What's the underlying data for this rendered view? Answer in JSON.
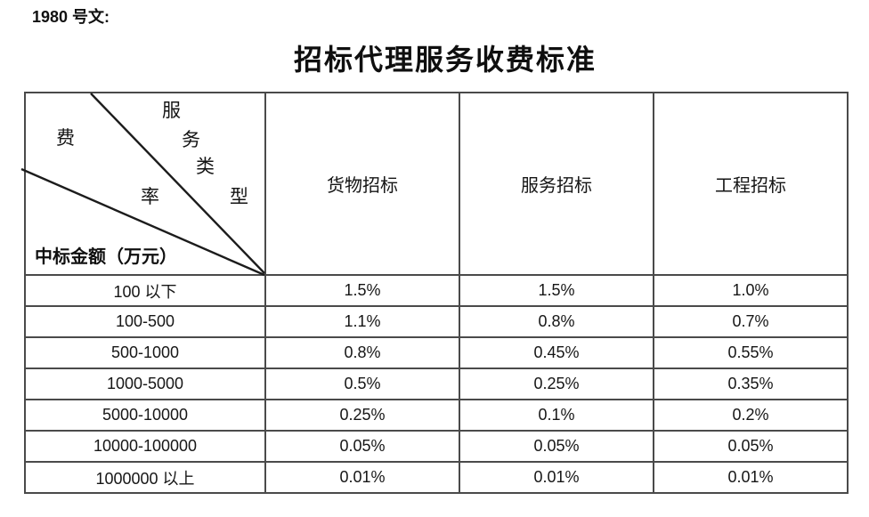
{
  "page": {
    "doc_ref": "1980 号文:",
    "title": "招标代理服务收费标准"
  },
  "table": {
    "corner": {
      "diagonal_top_label": "服务类型",
      "diagonal_mid_label": "费率",
      "diagonal_bottom_label": "中标金额（万元）"
    },
    "columns": [
      "货物招标",
      "服务招标",
      "工程招标"
    ],
    "rows": [
      {
        "range": "100 以下",
        "values": [
          "1.5%",
          "1.5%",
          "1.0%"
        ]
      },
      {
        "range": "100-500",
        "values": [
          "1.1%",
          "0.8%",
          "0.7%"
        ]
      },
      {
        "range": "500-1000",
        "values": [
          "0.8%",
          "0.45%",
          "0.55%"
        ]
      },
      {
        "range": "1000-5000",
        "values": [
          "0.5%",
          "0.25%",
          "0.35%"
        ]
      },
      {
        "range": "5000-10000",
        "values": [
          "0.25%",
          "0.1%",
          "0.2%"
        ]
      },
      {
        "range": "10000-100000",
        "values": [
          "0.05%",
          "0.05%",
          "0.05%"
        ]
      },
      {
        "range": "1000000 以上",
        "values": [
          "0.01%",
          "0.01%",
          "0.01%"
        ]
      }
    ]
  }
}
